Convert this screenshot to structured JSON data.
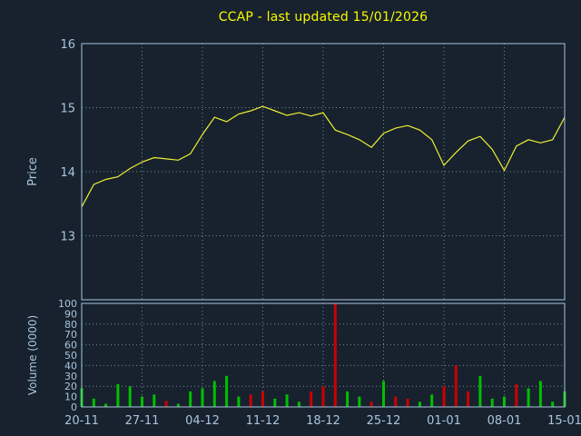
{
  "title": "CCAP - last updated 15/01/2026",
  "colors": {
    "background": "#17222e",
    "title": "#f8f800",
    "axis_text": "#a9c4dd",
    "border": "#a9c4dd",
    "grid": "#78879a",
    "price_line": "#eeee33",
    "volume_up": "#00c000",
    "volume_down": "#cc0000"
  },
  "chart_data": [
    {
      "type": "line",
      "title": "CCAP - last updated 15/01/2026",
      "ylabel": "Price",
      "ylim": [
        12,
        16
      ],
      "yticks": [
        13,
        14,
        15,
        16
      ],
      "xtick_labels": [
        "20-11",
        "27-11",
        "04-12",
        "11-12",
        "18-12",
        "25-12",
        "01-01",
        "08-01",
        "15-01"
      ],
      "xtick_positions": [
        0,
        5,
        10,
        15,
        20,
        25,
        30,
        35,
        40
      ],
      "grid": true,
      "series": [
        {
          "name": "CCAP price",
          "values": [
            13.45,
            13.8,
            13.88,
            13.92,
            14.05,
            14.15,
            14.22,
            14.2,
            14.18,
            14.28,
            14.58,
            14.85,
            14.78,
            14.9,
            14.95,
            15.02,
            14.95,
            14.88,
            14.92,
            14.87,
            14.92,
            14.65,
            14.58,
            14.5,
            14.38,
            14.6,
            14.68,
            14.72,
            14.65,
            14.5,
            14.1,
            14.3,
            14.48,
            14.55,
            14.35,
            14.02,
            14.4,
            14.5,
            14.45,
            14.5,
            14.85
          ]
        }
      ]
    },
    {
      "type": "bar",
      "ylabel": "Volume (0000)",
      "ylim": [
        0,
        100
      ],
      "yticks": [
        0,
        10,
        20,
        30,
        40,
        50,
        60,
        70,
        80,
        90,
        100
      ],
      "grid": true,
      "values": [
        18,
        8,
        3,
        22,
        20,
        10,
        12,
        6,
        3,
        15,
        18,
        25,
        30,
        10,
        12,
        15,
        8,
        12,
        5,
        15,
        20,
        100,
        15,
        10,
        5,
        25,
        10,
        8,
        5,
        12,
        20,
        40,
        15,
        30,
        8,
        10,
        22,
        18,
        25,
        5,
        15
      ],
      "directions": [
        "up",
        "up",
        "up",
        "up",
        "up",
        "up",
        "up",
        "down",
        "up",
        "up",
        "up",
        "up",
        "up",
        "up",
        "down",
        "down",
        "up",
        "up",
        "up",
        "down",
        "down",
        "down",
        "up",
        "up",
        "down",
        "up",
        "down",
        "down",
        "up",
        "up",
        "down",
        "down",
        "down",
        "up",
        "up",
        "up",
        "down",
        "up",
        "up",
        "up",
        "up"
      ]
    }
  ]
}
